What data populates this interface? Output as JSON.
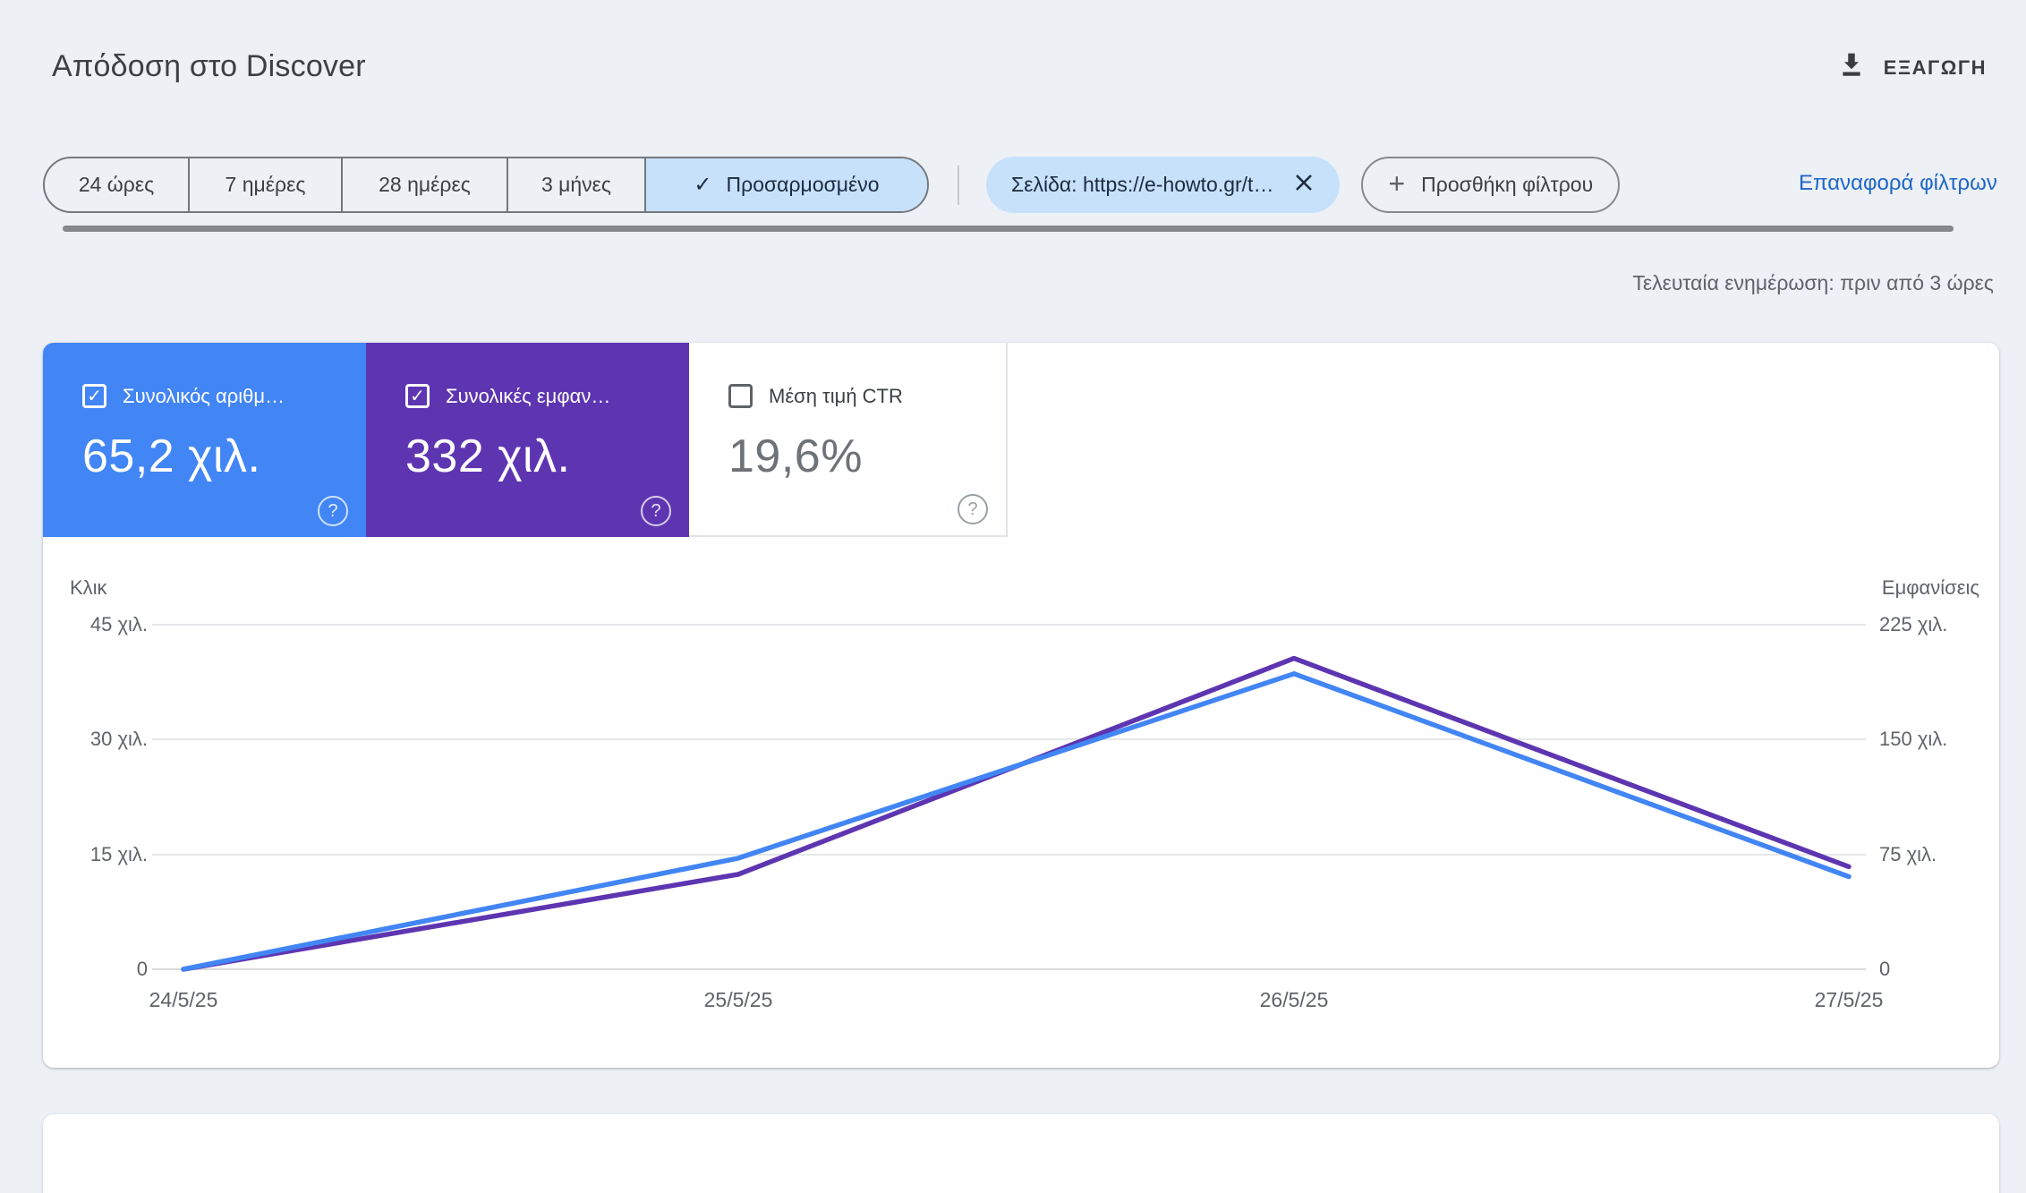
{
  "header": {
    "title": "Απόδοση στο Discover",
    "export_label": "ΕΞΑΓΩΓΗ"
  },
  "filters": {
    "ranges": [
      "24 ώρες",
      "7 ημέρες",
      "28 ημέρες",
      "3 μήνες"
    ],
    "custom_range_label": "Προσαρμοσμένο",
    "custom_check": "✓",
    "page_filter_label": "Σελίδα: https://e-howto.gr/t…",
    "add_filter_label": "Προσθήκη φίλτρου",
    "add_filter_plus": "+",
    "reset_filters_label": "Επαναφορά φίλτρων"
  },
  "status": {
    "last_update": "Τελευταία ενημέρωση: πριν από 3 ώρες"
  },
  "metrics": [
    {
      "label": "Συνολικός αριθμ…",
      "value": "65,2 χιλ.",
      "checked": true,
      "check_glyph": "✓",
      "color": "#4285f4"
    },
    {
      "label": "Συνολικές εμφαν…",
      "value": "332 χιλ.",
      "checked": true,
      "check_glyph": "✓",
      "color": "#5e35b1"
    },
    {
      "label": "Μέση τιμή CTR",
      "value": "19,6%",
      "checked": false,
      "check_glyph": "",
      "color": "#ffffff"
    }
  ],
  "help_glyph": "?",
  "chart_data": {
    "type": "line",
    "x": [
      "24/5/25",
      "25/5/25",
      "26/5/25",
      "27/5/25"
    ],
    "series": [
      {
        "name": "Κλικ",
        "axis": "left",
        "color": "#4285f4",
        "max_thousands": 45,
        "values_thousands": [
          0,
          14.5,
          38.6,
          12.1
        ]
      },
      {
        "name": "Εμφανίσεις",
        "axis": "right",
        "color": "#5e35b1",
        "max_thousands": 225,
        "values_thousands": [
          0,
          62,
          203,
          67
        ]
      }
    ],
    "left_axis": {
      "label": "Κλικ",
      "ticks": [
        "45 χιλ.",
        "30 χιλ.",
        "15 χιλ.",
        "0"
      ],
      "range_thousands": [
        0,
        45
      ]
    },
    "right_axis": {
      "label": "Εμφανίσεις",
      "ticks": [
        "225 χιλ.",
        "150 χιλ.",
        "75 χιλ.",
        "0"
      ],
      "range_thousands": [
        0,
        225
      ]
    },
    "grid": true,
    "legend_position": "none"
  }
}
